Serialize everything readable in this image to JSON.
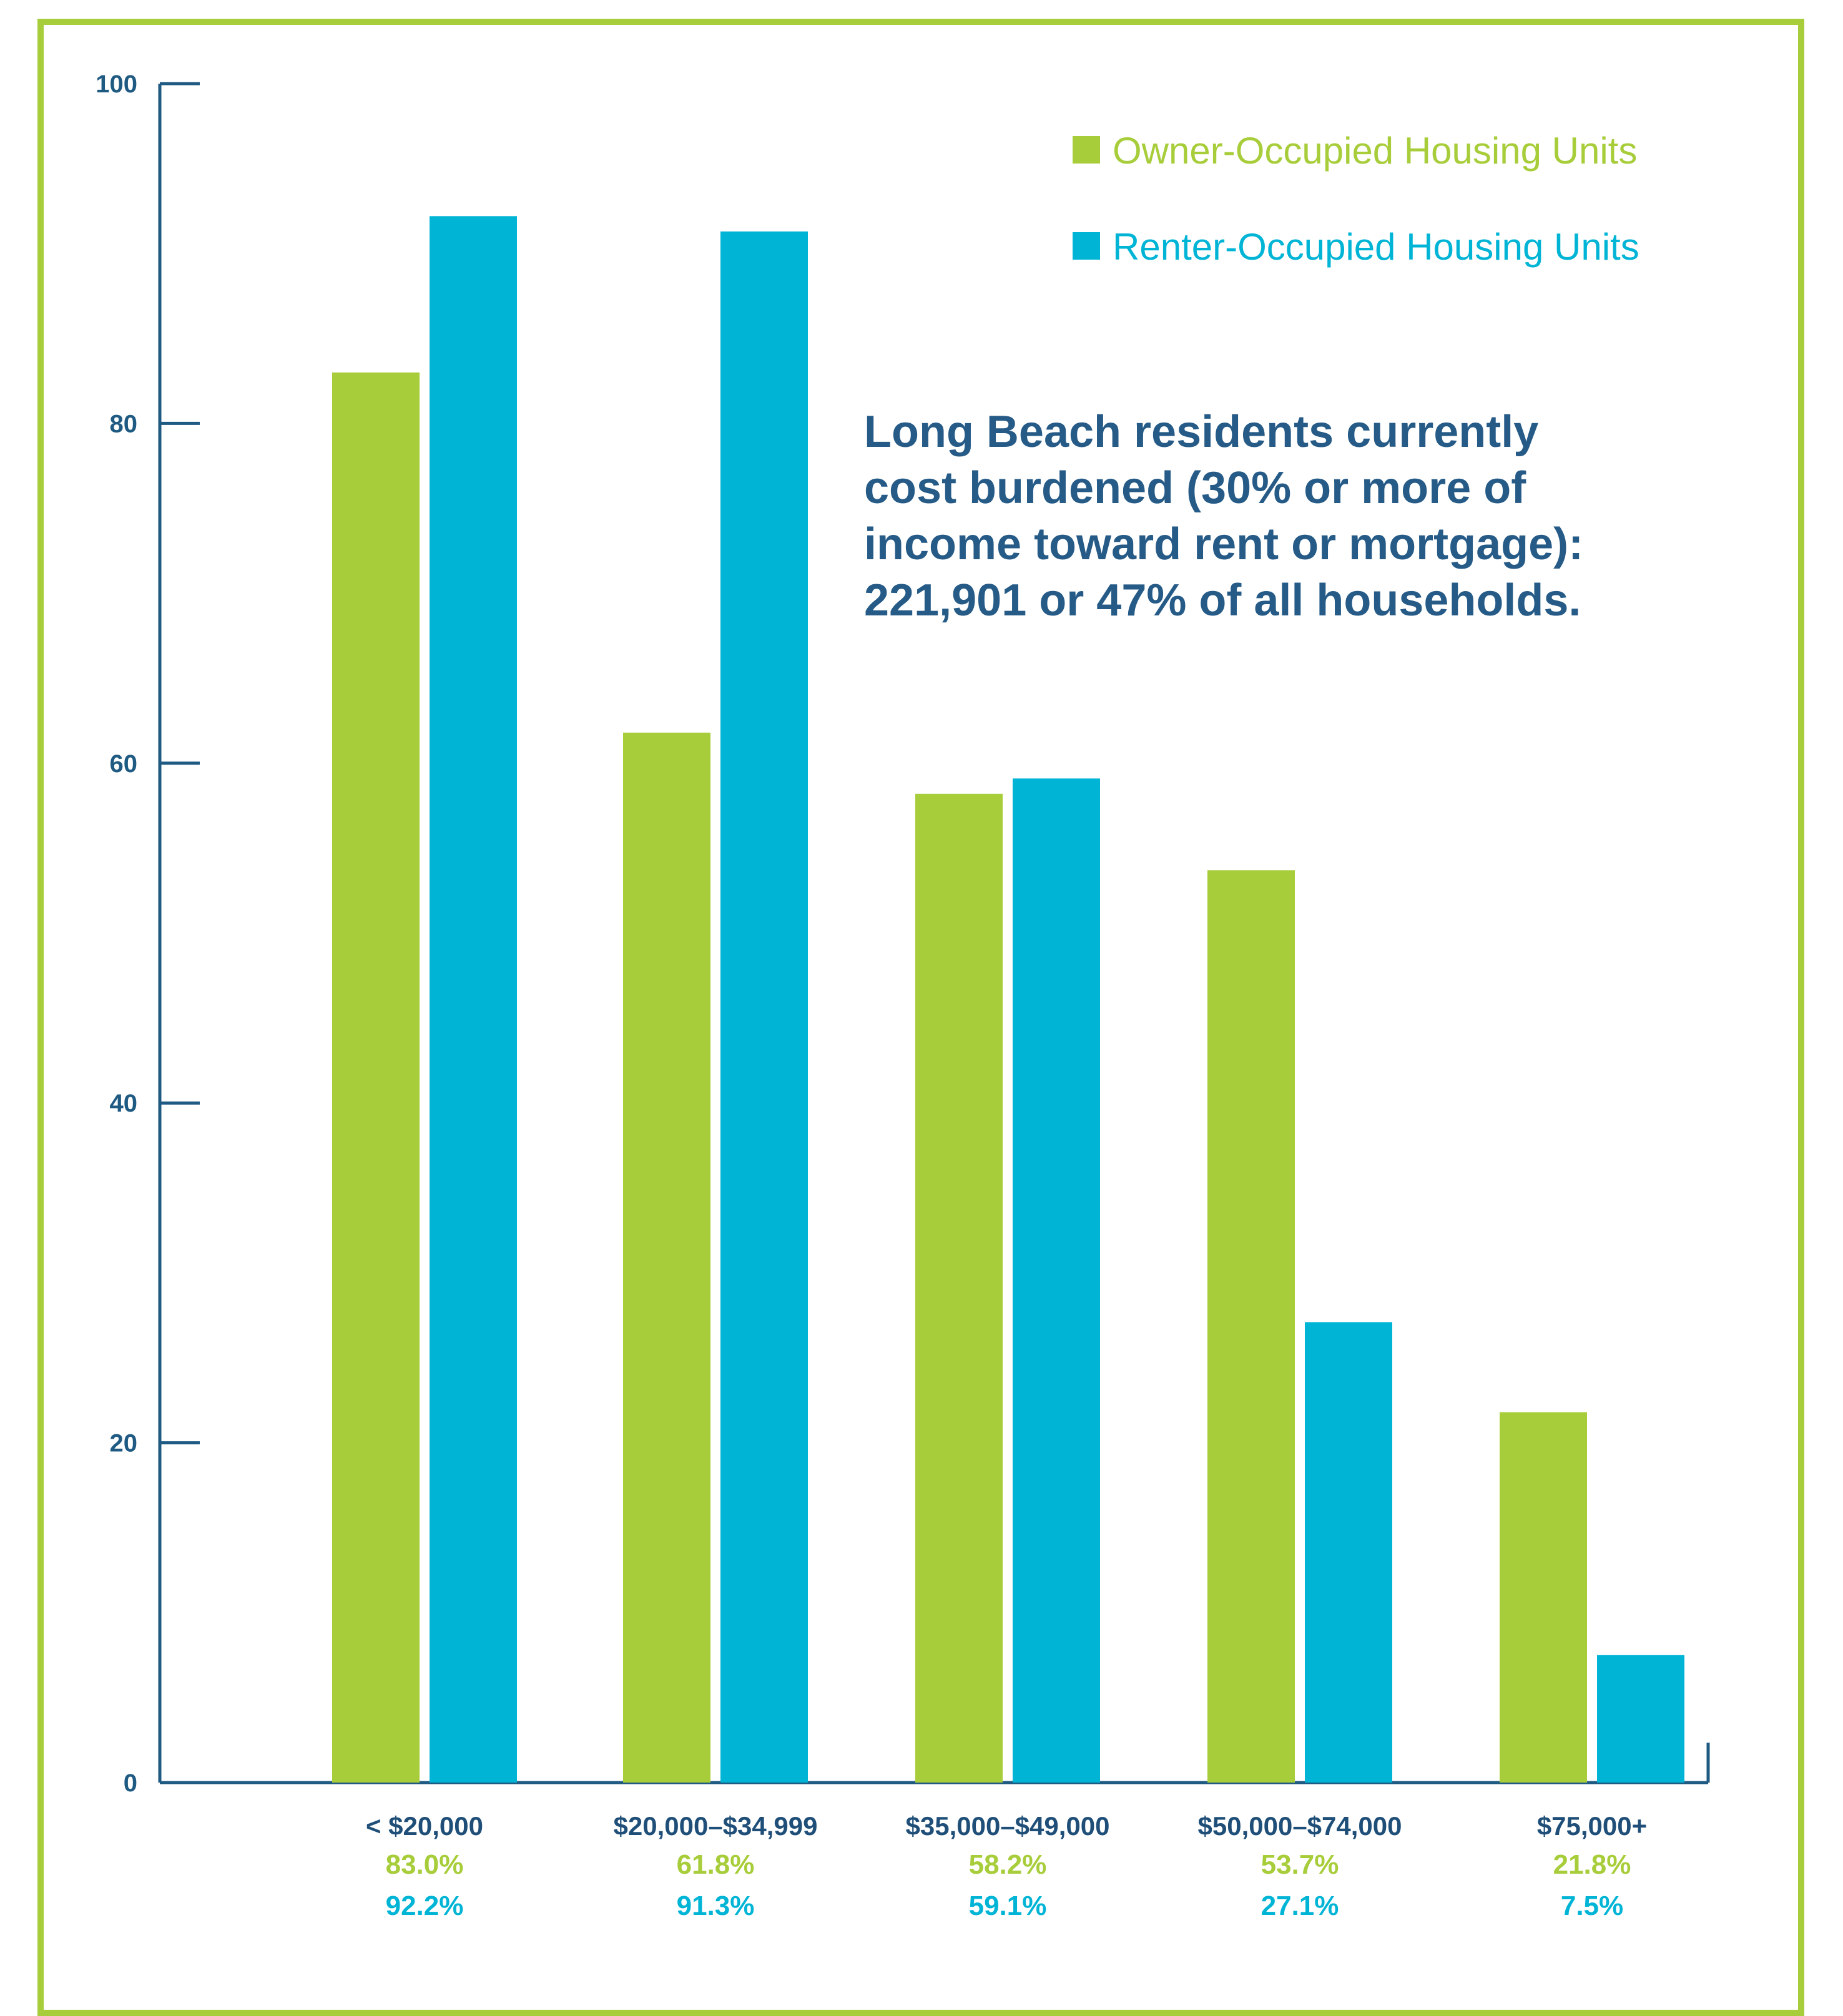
{
  "chart_data": {
    "type": "bar",
    "categories": [
      "< $20,000",
      "$20,000–$34,999",
      "$35,000–$49,000",
      "$50,000–$74,000",
      "$75,000+"
    ],
    "series": [
      {
        "name": "Owner-Occupied Housing Units",
        "color": "#a8cd3a",
        "values": [
          83.0,
          61.8,
          58.2,
          53.7,
          21.8
        ],
        "value_labels": [
          "83.0%",
          "61.8%",
          "58.2%",
          "53.7%",
          "21.8%"
        ]
      },
      {
        "name": "Renter-Occupied Housing Units",
        "color": "#00b4d6",
        "values": [
          92.2,
          91.3,
          59.1,
          27.1,
          7.5
        ],
        "value_labels": [
          "92.2%",
          "91.3%",
          "59.1%",
          "27.1%",
          "7.5%"
        ]
      }
    ],
    "yticks": [
      "0",
      "20",
      "40",
      "60",
      "80",
      "100"
    ],
    "ylim": [
      0,
      100
    ],
    "legend_position": "top-right",
    "annotation": [
      "Long Beach residents currently",
      "cost burdened (30% or more of",
      "income toward rent or mortgage):",
      "221,901 or 47% of all households."
    ],
    "axis_color": "#1f5a82",
    "frame_color": "#a8cd3a"
  }
}
